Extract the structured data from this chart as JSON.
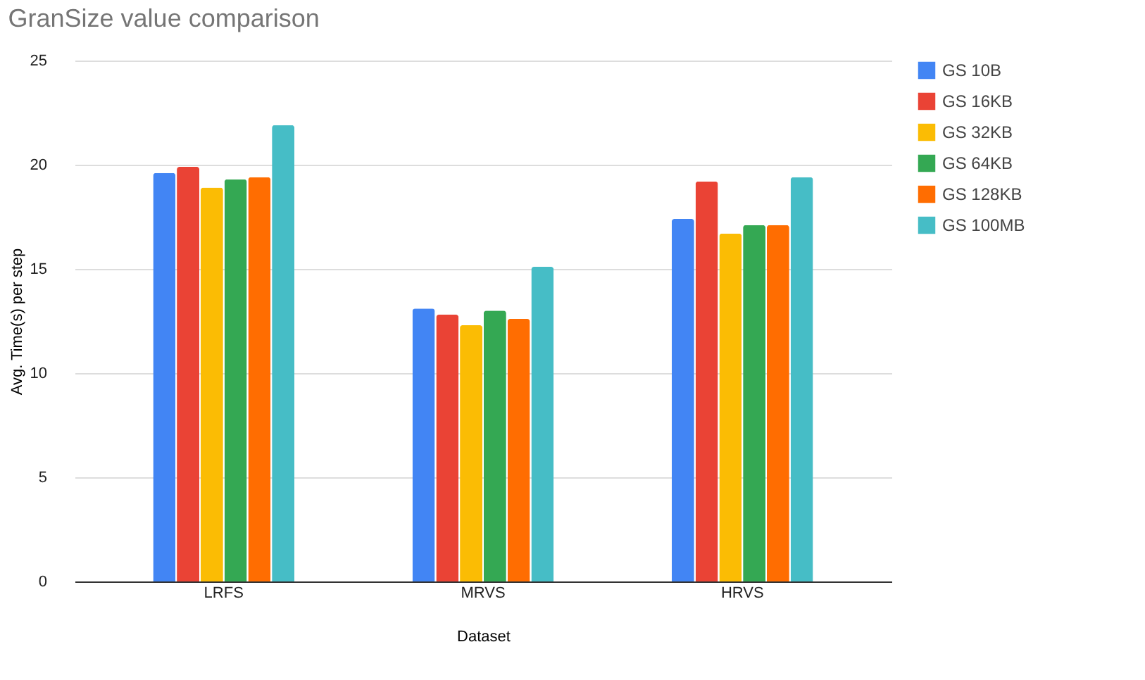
{
  "chart_data": {
    "type": "bar",
    "title": "GranSize value comparison",
    "xlabel": "Dataset",
    "ylabel": "Avg. Time(s) per step",
    "categories": [
      "LRFS",
      "MRVS",
      "HRVS"
    ],
    "series": [
      {
        "name": "GS 10B",
        "color": "#4285f4",
        "values": [
          19.6,
          13.1,
          17.4
        ]
      },
      {
        "name": "GS 16KB",
        "color": "#ea4335",
        "values": [
          19.9,
          12.8,
          19.2
        ]
      },
      {
        "name": "GS 32KB",
        "color": "#fbbc04",
        "values": [
          18.9,
          12.3,
          16.7
        ]
      },
      {
        "name": "GS 64KB",
        "color": "#34a853",
        "values": [
          19.3,
          13.0,
          17.1
        ]
      },
      {
        "name": "GS 128KB",
        "color": "#ff6d01",
        "values": [
          19.4,
          12.6,
          17.1
        ]
      },
      {
        "name": "GS 100MB",
        "color": "#46bdc6",
        "values": [
          21.9,
          15.1,
          19.4
        ]
      }
    ],
    "ylim": [
      0,
      25
    ],
    "yticks": [
      0,
      5,
      10,
      15,
      20,
      25
    ],
    "grid": "y",
    "legend": "right"
  }
}
